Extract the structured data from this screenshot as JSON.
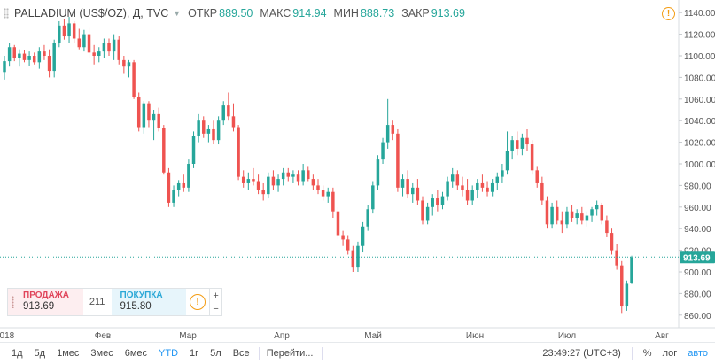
{
  "header": {
    "symbol": "PALLADIUM (US$/OZ), Д, TVC",
    "open_label": "ОТКР",
    "open_value": "889.50",
    "high_label": "МАКС",
    "high_value": "914.94",
    "low_label": "МИН",
    "low_value": "888.73",
    "close_label": "ЗАКР",
    "close_value": "913.69"
  },
  "trade_panel": {
    "sell_label": "ПРОДАЖА",
    "sell_value": "913.69",
    "spread": "211",
    "buy_label": "ПОКУПКА",
    "buy_value": "915.80",
    "info_icon": "!",
    "plus": "+",
    "minus": "−"
  },
  "bottom_bar": {
    "ranges": [
      "1д",
      "5д",
      "1мес",
      "3мес",
      "6мес",
      "YTD",
      "1г",
      "5л",
      "Все"
    ],
    "active_range": "YTD",
    "goto_label": "Перейти...",
    "time": "23:49:27 (UTC+3)",
    "percent_label": "%",
    "log_label": "лог",
    "auto_label": "авто"
  },
  "colors": {
    "up": "#26a69a",
    "down": "#ef5350",
    "last_price": "#26a69a",
    "accent": "#2196f3"
  },
  "chart_data": {
    "type": "candlestick",
    "y_axis": {
      "min": 850,
      "max": 1150,
      "ticks": [
        860,
        880,
        900,
        920,
        940,
        960,
        980,
        1000,
        1020,
        1040,
        1060,
        1080,
        1100,
        1120,
        1140
      ],
      "position": "right"
    },
    "x_axis": {
      "labels": [
        "2018",
        "Фев",
        "Мар",
        "Апр",
        "Май",
        "Июн",
        "Июл",
        "Авг"
      ]
    },
    "last_price": 913.69,
    "last_price_label": "913.69",
    "grid": false,
    "candles": [
      {
        "o": 1085,
        "h": 1100,
        "l": 1078,
        "c": 1095
      },
      {
        "o": 1095,
        "h": 1112,
        "l": 1090,
        "c": 1108
      },
      {
        "o": 1108,
        "h": 1110,
        "l": 1095,
        "c": 1098
      },
      {
        "o": 1098,
        "h": 1106,
        "l": 1090,
        "c": 1102
      },
      {
        "o": 1102,
        "h": 1105,
        "l": 1094,
        "c": 1096
      },
      {
        "o": 1096,
        "h": 1104,
        "l": 1091,
        "c": 1100
      },
      {
        "o": 1100,
        "h": 1103,
        "l": 1092,
        "c": 1094
      },
      {
        "o": 1094,
        "h": 1108,
        "l": 1088,
        "c": 1104
      },
      {
        "o": 1104,
        "h": 1110,
        "l": 1096,
        "c": 1100
      },
      {
        "o": 1100,
        "h": 1106,
        "l": 1080,
        "c": 1086
      },
      {
        "o": 1086,
        "h": 1115,
        "l": 1080,
        "c": 1112
      },
      {
        "o": 1112,
        "h": 1132,
        "l": 1108,
        "c": 1128
      },
      {
        "o": 1128,
        "h": 1134,
        "l": 1115,
        "c": 1118
      },
      {
        "o": 1118,
        "h": 1136,
        "l": 1112,
        "c": 1130
      },
      {
        "o": 1130,
        "h": 1132,
        "l": 1112,
        "c": 1116
      },
      {
        "o": 1116,
        "h": 1125,
        "l": 1106,
        "c": 1108
      },
      {
        "o": 1108,
        "h": 1124,
        "l": 1104,
        "c": 1120
      },
      {
        "o": 1120,
        "h": 1126,
        "l": 1098,
        "c": 1103
      },
      {
        "o": 1103,
        "h": 1110,
        "l": 1092,
        "c": 1100
      },
      {
        "o": 1100,
        "h": 1108,
        "l": 1094,
        "c": 1104
      },
      {
        "o": 1104,
        "h": 1116,
        "l": 1098,
        "c": 1112
      },
      {
        "o": 1112,
        "h": 1116,
        "l": 1100,
        "c": 1104
      },
      {
        "o": 1104,
        "h": 1120,
        "l": 1096,
        "c": 1115
      },
      {
        "o": 1115,
        "h": 1118,
        "l": 1092,
        "c": 1096
      },
      {
        "o": 1096,
        "h": 1100,
        "l": 1084,
        "c": 1090
      },
      {
        "o": 1090,
        "h": 1096,
        "l": 1080,
        "c": 1094
      },
      {
        "o": 1094,
        "h": 1096,
        "l": 1060,
        "c": 1062
      },
      {
        "o": 1062,
        "h": 1066,
        "l": 1030,
        "c": 1034
      },
      {
        "o": 1034,
        "h": 1058,
        "l": 1028,
        "c": 1056
      },
      {
        "o": 1056,
        "h": 1058,
        "l": 1034,
        "c": 1040
      },
      {
        "o": 1040,
        "h": 1050,
        "l": 1022,
        "c": 1046
      },
      {
        "o": 1046,
        "h": 1052,
        "l": 1030,
        "c": 1033
      },
      {
        "o": 1033,
        "h": 1036,
        "l": 990,
        "c": 992
      },
      {
        "o": 992,
        "h": 996,
        "l": 960,
        "c": 964
      },
      {
        "o": 964,
        "h": 980,
        "l": 960,
        "c": 976
      },
      {
        "o": 976,
        "h": 985,
        "l": 970,
        "c": 982
      },
      {
        "o": 982,
        "h": 990,
        "l": 974,
        "c": 978
      },
      {
        "o": 978,
        "h": 1004,
        "l": 974,
        "c": 1000
      },
      {
        "o": 1000,
        "h": 1030,
        "l": 996,
        "c": 1026
      },
      {
        "o": 1026,
        "h": 1046,
        "l": 1020,
        "c": 1040
      },
      {
        "o": 1040,
        "h": 1044,
        "l": 1024,
        "c": 1028
      },
      {
        "o": 1028,
        "h": 1036,
        "l": 1020,
        "c": 1032
      },
      {
        "o": 1032,
        "h": 1040,
        "l": 1018,
        "c": 1022
      },
      {
        "o": 1022,
        "h": 1044,
        "l": 1018,
        "c": 1040
      },
      {
        "o": 1040,
        "h": 1058,
        "l": 1036,
        "c": 1054
      },
      {
        "o": 1054,
        "h": 1066,
        "l": 1040,
        "c": 1044
      },
      {
        "o": 1044,
        "h": 1056,
        "l": 1030,
        "c": 1034
      },
      {
        "o": 1034,
        "h": 1036,
        "l": 985,
        "c": 988
      },
      {
        "o": 988,
        "h": 994,
        "l": 978,
        "c": 982
      },
      {
        "o": 982,
        "h": 992,
        "l": 976,
        "c": 986
      },
      {
        "o": 986,
        "h": 996,
        "l": 980,
        "c": 984
      },
      {
        "o": 984,
        "h": 990,
        "l": 972,
        "c": 976
      },
      {
        "o": 976,
        "h": 982,
        "l": 966,
        "c": 972
      },
      {
        "o": 972,
        "h": 992,
        "l": 968,
        "c": 988
      },
      {
        "o": 988,
        "h": 994,
        "l": 976,
        "c": 980
      },
      {
        "o": 980,
        "h": 990,
        "l": 974,
        "c": 986
      },
      {
        "o": 986,
        "h": 996,
        "l": 980,
        "c": 992
      },
      {
        "o": 992,
        "h": 996,
        "l": 984,
        "c": 988
      },
      {
        "o": 988,
        "h": 994,
        "l": 982,
        "c": 990
      },
      {
        "o": 990,
        "h": 994,
        "l": 980,
        "c": 984
      },
      {
        "o": 984,
        "h": 1000,
        "l": 980,
        "c": 994
      },
      {
        "o": 994,
        "h": 998,
        "l": 984,
        "c": 986
      },
      {
        "o": 986,
        "h": 990,
        "l": 976,
        "c": 980
      },
      {
        "o": 980,
        "h": 986,
        "l": 972,
        "c": 976
      },
      {
        "o": 976,
        "h": 980,
        "l": 966,
        "c": 970
      },
      {
        "o": 970,
        "h": 978,
        "l": 964,
        "c": 974
      },
      {
        "o": 974,
        "h": 978,
        "l": 950,
        "c": 956
      },
      {
        "o": 956,
        "h": 960,
        "l": 930,
        "c": 934
      },
      {
        "o": 934,
        "h": 938,
        "l": 924,
        "c": 930
      },
      {
        "o": 930,
        "h": 934,
        "l": 916,
        "c": 920
      },
      {
        "o": 920,
        "h": 924,
        "l": 900,
        "c": 904
      },
      {
        "o": 904,
        "h": 928,
        "l": 900,
        "c": 924
      },
      {
        "o": 924,
        "h": 946,
        "l": 918,
        "c": 942
      },
      {
        "o": 942,
        "h": 962,
        "l": 938,
        "c": 958
      },
      {
        "o": 958,
        "h": 984,
        "l": 954,
        "c": 980
      },
      {
        "o": 980,
        "h": 1008,
        "l": 976,
        "c": 1004
      },
      {
        "o": 1004,
        "h": 1024,
        "l": 1000,
        "c": 1020
      },
      {
        "o": 1020,
        "h": 1060,
        "l": 1014,
        "c": 1036
      },
      {
        "o": 1036,
        "h": 1040,
        "l": 1022,
        "c": 1028
      },
      {
        "o": 1028,
        "h": 1032,
        "l": 974,
        "c": 978
      },
      {
        "o": 978,
        "h": 990,
        "l": 970,
        "c": 986
      },
      {
        "o": 986,
        "h": 994,
        "l": 968,
        "c": 972
      },
      {
        "o": 972,
        "h": 982,
        "l": 964,
        "c": 978
      },
      {
        "o": 978,
        "h": 986,
        "l": 962,
        "c": 966
      },
      {
        "o": 966,
        "h": 970,
        "l": 944,
        "c": 948
      },
      {
        "o": 948,
        "h": 964,
        "l": 944,
        "c": 960
      },
      {
        "o": 960,
        "h": 972,
        "l": 952,
        "c": 968
      },
      {
        "o": 968,
        "h": 976,
        "l": 956,
        "c": 962
      },
      {
        "o": 962,
        "h": 974,
        "l": 958,
        "c": 970
      },
      {
        "o": 970,
        "h": 988,
        "l": 966,
        "c": 984
      },
      {
        "o": 984,
        "h": 996,
        "l": 978,
        "c": 990
      },
      {
        "o": 990,
        "h": 994,
        "l": 976,
        "c": 980
      },
      {
        "o": 980,
        "h": 988,
        "l": 970,
        "c": 976
      },
      {
        "o": 976,
        "h": 986,
        "l": 962,
        "c": 966
      },
      {
        "o": 966,
        "h": 980,
        "l": 962,
        "c": 976
      },
      {
        "o": 976,
        "h": 986,
        "l": 968,
        "c": 982
      },
      {
        "o": 982,
        "h": 990,
        "l": 974,
        "c": 978
      },
      {
        "o": 978,
        "h": 984,
        "l": 970,
        "c": 974
      },
      {
        "o": 974,
        "h": 986,
        "l": 970,
        "c": 982
      },
      {
        "o": 982,
        "h": 992,
        "l": 976,
        "c": 988
      },
      {
        "o": 988,
        "h": 1000,
        "l": 982,
        "c": 994
      },
      {
        "o": 994,
        "h": 1030,
        "l": 990,
        "c": 1012
      },
      {
        "o": 1012,
        "h": 1026,
        "l": 1004,
        "c": 1022
      },
      {
        "o": 1022,
        "h": 1030,
        "l": 1008,
        "c": 1014
      },
      {
        "o": 1014,
        "h": 1028,
        "l": 1008,
        "c": 1024
      },
      {
        "o": 1024,
        "h": 1032,
        "l": 1012,
        "c": 1018
      },
      {
        "o": 1018,
        "h": 1022,
        "l": 990,
        "c": 994
      },
      {
        "o": 994,
        "h": 998,
        "l": 978,
        "c": 982
      },
      {
        "o": 982,
        "h": 988,
        "l": 962,
        "c": 966
      },
      {
        "o": 966,
        "h": 970,
        "l": 940,
        "c": 944
      },
      {
        "o": 944,
        "h": 964,
        "l": 940,
        "c": 960
      },
      {
        "o": 960,
        "h": 966,
        "l": 944,
        "c": 948
      },
      {
        "o": 948,
        "h": 956,
        "l": 936,
        "c": 944
      },
      {
        "o": 944,
        "h": 960,
        "l": 940,
        "c": 956
      },
      {
        "o": 956,
        "h": 962,
        "l": 946,
        "c": 950
      },
      {
        "o": 950,
        "h": 958,
        "l": 944,
        "c": 954
      },
      {
        "o": 954,
        "h": 960,
        "l": 944,
        "c": 948
      },
      {
        "o": 948,
        "h": 956,
        "l": 942,
        "c": 952
      },
      {
        "o": 952,
        "h": 960,
        "l": 946,
        "c": 958
      },
      {
        "o": 958,
        "h": 966,
        "l": 952,
        "c": 962
      },
      {
        "o": 962,
        "h": 964,
        "l": 944,
        "c": 948
      },
      {
        "o": 948,
        "h": 952,
        "l": 932,
        "c": 936
      },
      {
        "o": 936,
        "h": 940,
        "l": 916,
        "c": 920
      },
      {
        "o": 920,
        "h": 926,
        "l": 902,
        "c": 906
      },
      {
        "o": 906,
        "h": 910,
        "l": 862,
        "c": 868
      },
      {
        "o": 868,
        "h": 892,
        "l": 864,
        "c": 889
      },
      {
        "o": 889.5,
        "h": 914.94,
        "l": 888.73,
        "c": 913.69
      }
    ]
  }
}
